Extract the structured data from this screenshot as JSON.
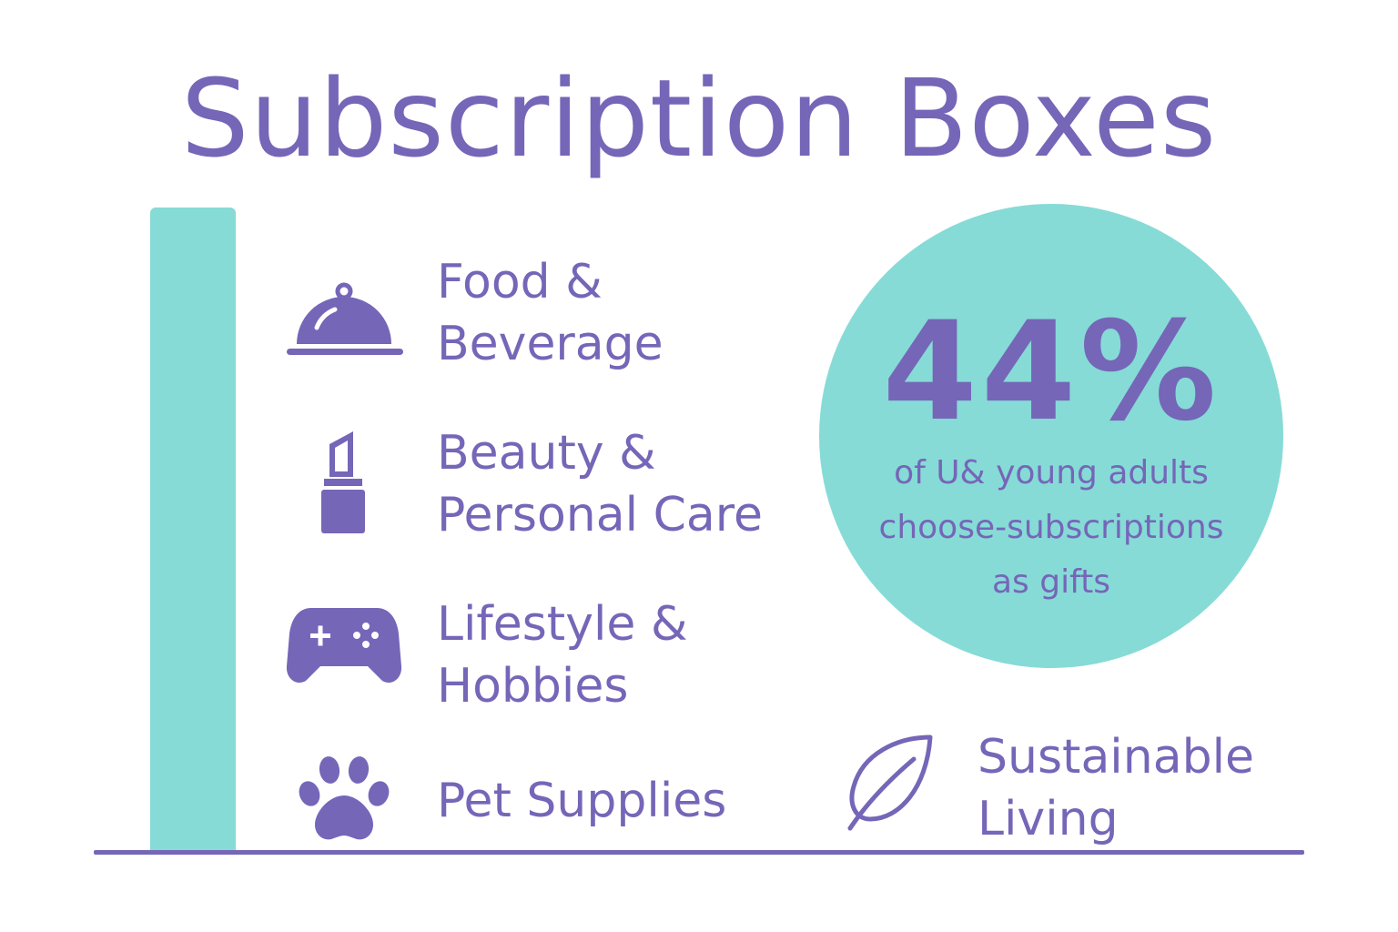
{
  "title": "Subscription Boxes",
  "colors": {
    "accent_purple": "#7566b8",
    "accent_teal": "#86dbd6",
    "background": "#ffffff"
  },
  "categories": [
    {
      "label": "Food &\nBeverage",
      "icon": "cloche-icon"
    },
    {
      "label": "Beauty &\nPersonal Care",
      "icon": "lipstick-icon"
    },
    {
      "label": "Lifestyle &\nHobbies",
      "icon": "game-controller-icon"
    },
    {
      "label": "Pet Supplies",
      "icon": "paw-icon"
    },
    {
      "label": "Sustainable\nLiving",
      "icon": "leaf-icon"
    }
  ],
  "stat": {
    "value": "44%",
    "caption": "of U& young adults\nchoose-subscriptions\nas gifts"
  }
}
